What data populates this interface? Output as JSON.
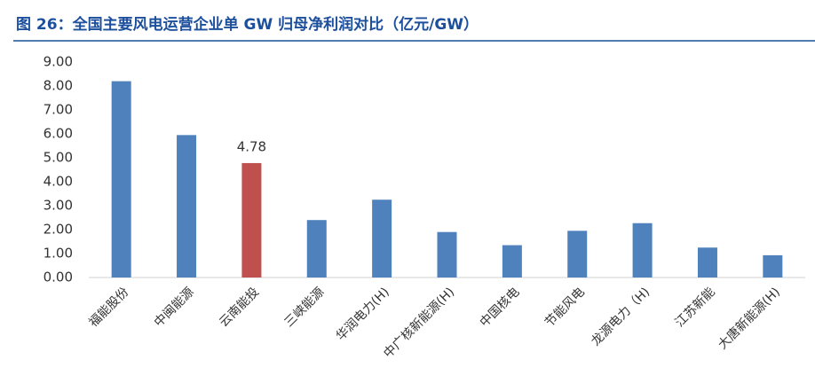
{
  "chart_data": {
    "type": "bar",
    "title": "图 26：全国主要风电运营企业单 GW 归母净利润对比（亿元/GW）",
    "categories": [
      "福能股份",
      "中闽能源",
      "云南能投",
      "三峡能源",
      "华润电力(H)",
      "中广核新能源(H)",
      "中国核电",
      "节能风电",
      "龙源电力（H)",
      "江苏新能",
      "大唐新能源(H)"
    ],
    "values": [
      8.2,
      5.95,
      4.78,
      2.4,
      3.25,
      1.9,
      1.35,
      1.95,
      2.27,
      1.25,
      0.93
    ],
    "value_labels": [
      null,
      null,
      "4.78",
      null,
      null,
      null,
      null,
      null,
      null,
      null,
      null
    ],
    "colors": [
      "#4f81bd",
      "#4f81bd",
      "#c0504d",
      "#4f81bd",
      "#4f81bd",
      "#4f81bd",
      "#4f81bd",
      "#4f81bd",
      "#4f81bd",
      "#4f81bd",
      "#4f81bd"
    ],
    "ylim": [
      0,
      9
    ],
    "yticks": [
      {
        "value": 0,
        "label": "0.00"
      },
      {
        "value": 1,
        "label": "1.00"
      },
      {
        "value": 2,
        "label": "2.00"
      },
      {
        "value": 3,
        "label": "3.00"
      },
      {
        "value": 4,
        "label": "4.00"
      },
      {
        "value": 5,
        "label": "5.00"
      },
      {
        "value": 6,
        "label": "6.00"
      },
      {
        "value": 7,
        "label": "7.00"
      },
      {
        "value": 8,
        "label": "8.00"
      },
      {
        "value": 9,
        "label": "9.00"
      }
    ],
    "grid": false
  }
}
